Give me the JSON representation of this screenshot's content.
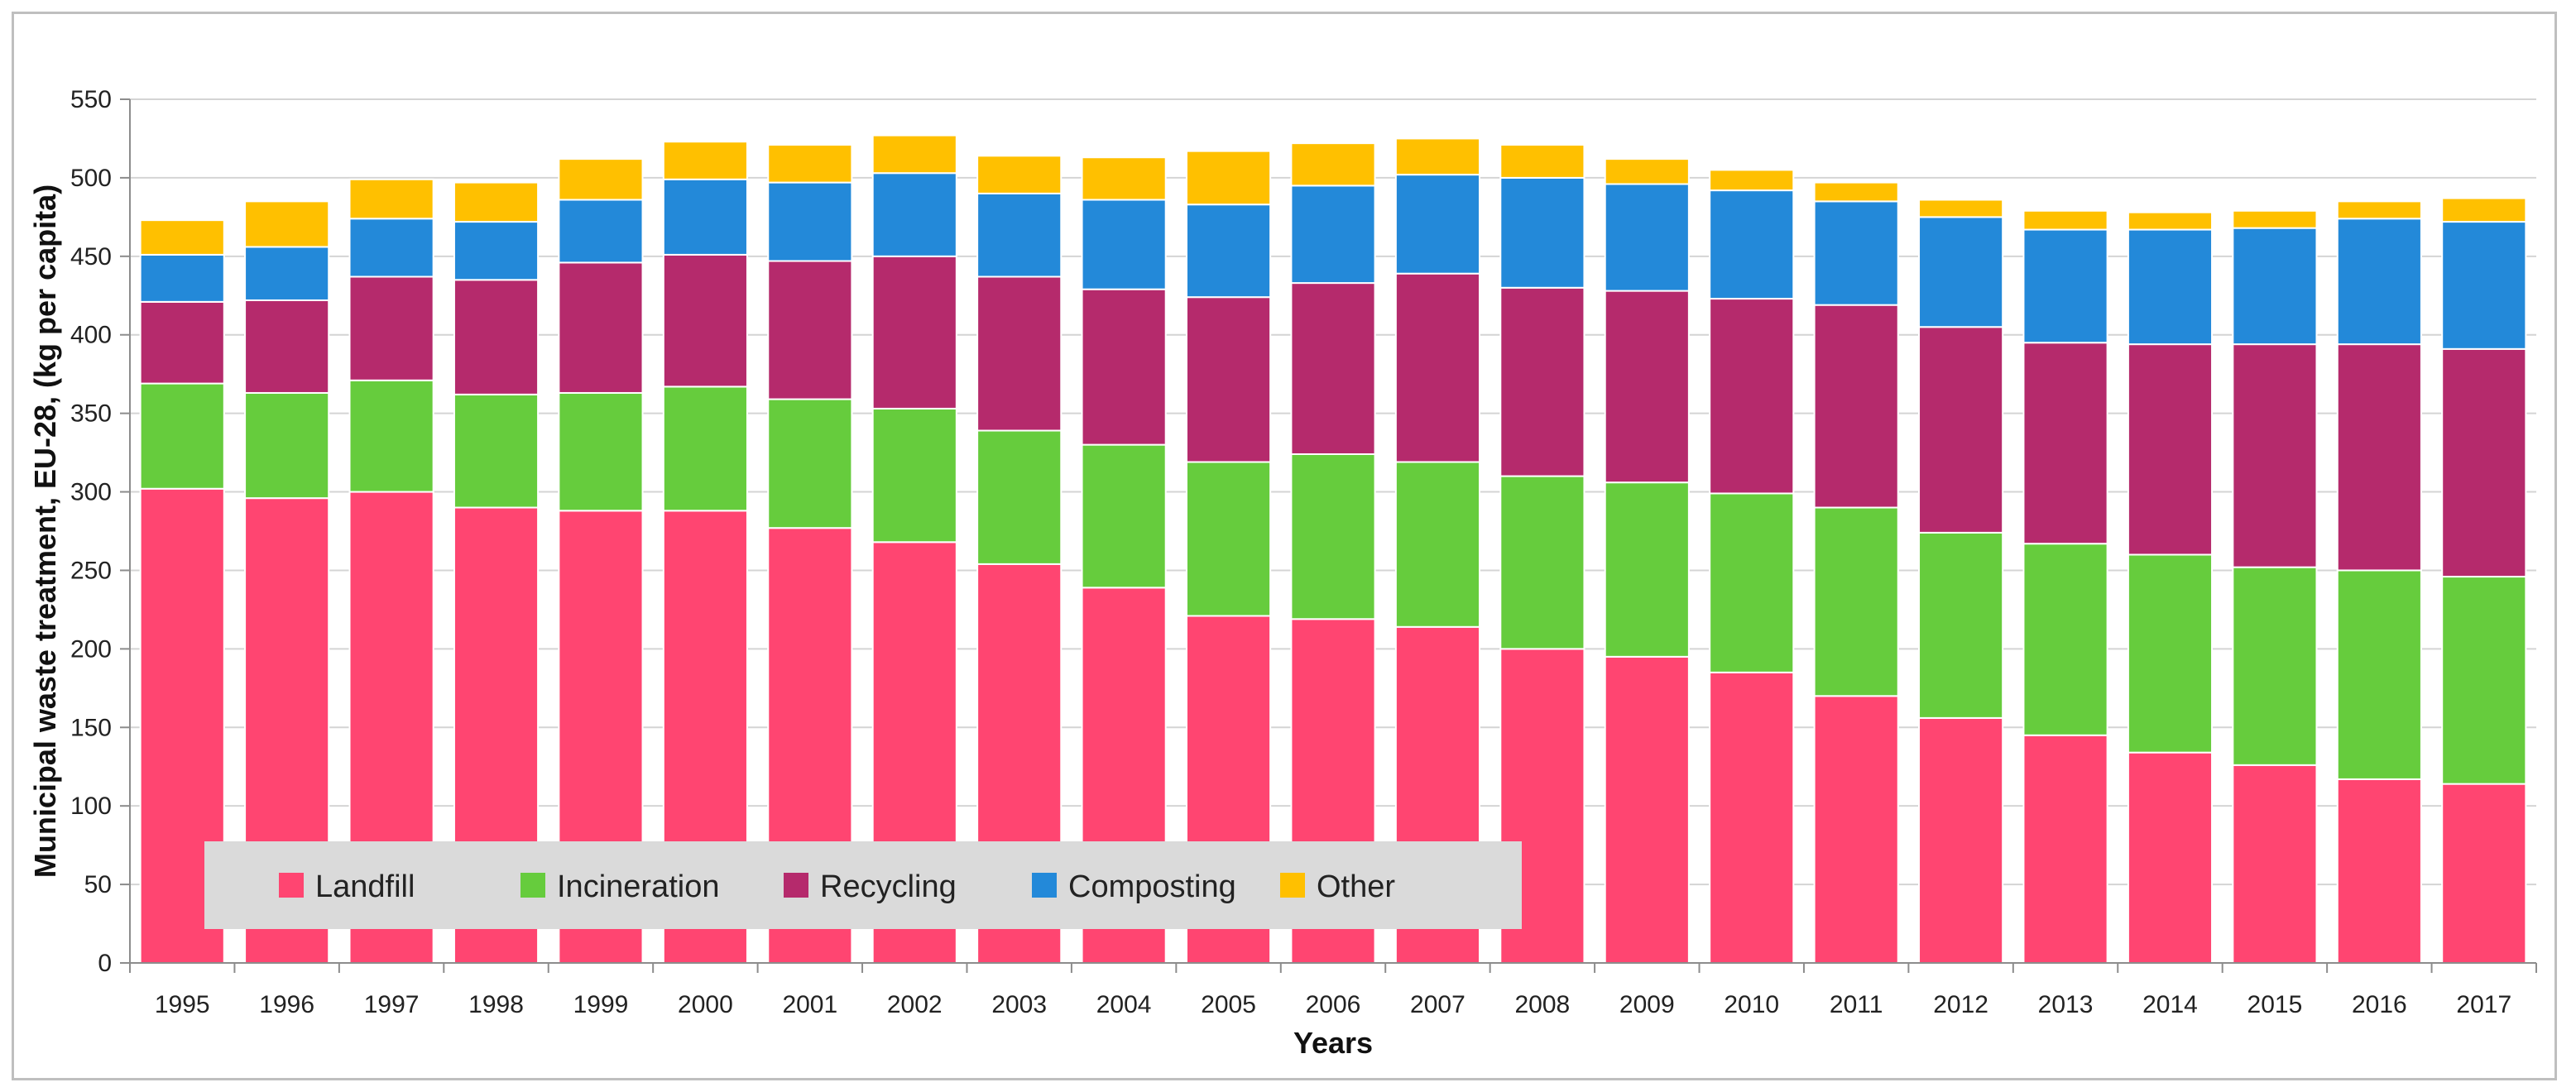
{
  "chart_data": {
    "type": "bar",
    "stacked": true,
    "title": "",
    "xlabel": "Years",
    "ylabel": "Municipal waste treatment, EU-28, (kg per capita)",
    "ylim": [
      0,
      550
    ],
    "yticks": [
      0,
      50,
      100,
      150,
      200,
      250,
      300,
      350,
      400,
      450,
      500,
      550
    ],
    "grid": true,
    "legend_position": "bottom-left inside",
    "categories": [
      "1995",
      "1996",
      "1997",
      "1998",
      "1999",
      "2000",
      "2001",
      "2002",
      "2003",
      "2004",
      "2005",
      "2006",
      "2007",
      "2008",
      "2009",
      "2010",
      "2011",
      "2012",
      "2013",
      "2014",
      "2015",
      "2016",
      "2017"
    ],
    "series": [
      {
        "name": "Landfill",
        "color": "#ff4571",
        "values": [
          302,
          296,
          300,
          290,
          288,
          288,
          277,
          268,
          254,
          239,
          221,
          219,
          214,
          200,
          195,
          185,
          170,
          156,
          145,
          134,
          126,
          117,
          114
        ]
      },
      {
        "name": "Incineration",
        "color": "#66cc3d",
        "values": [
          67,
          67,
          71,
          72,
          75,
          79,
          82,
          85,
          85,
          91,
          98,
          105,
          105,
          110,
          111,
          114,
          120,
          118,
          122,
          126,
          126,
          133,
          132
        ]
      },
      {
        "name": "Recycling",
        "color": "#b52a6c",
        "values": [
          52,
          59,
          66,
          73,
          83,
          84,
          88,
          97,
          98,
          99,
          105,
          109,
          120,
          120,
          122,
          124,
          129,
          131,
          128,
          134,
          142,
          144,
          145
        ]
      },
      {
        "name": "Composting",
        "color": "#2389d9",
        "values": [
          30,
          34,
          37,
          37,
          40,
          48,
          50,
          53,
          53,
          57,
          59,
          62,
          63,
          70,
          68,
          69,
          66,
          70,
          72,
          73,
          74,
          80,
          81
        ]
      },
      {
        "name": "Other",
        "color": "#ffc000",
        "values": [
          22,
          29,
          25,
          25,
          26,
          24,
          24,
          24,
          24,
          27,
          34,
          27,
          23,
          21,
          16,
          13,
          12,
          11,
          12,
          11,
          11,
          11,
          15
        ]
      }
    ]
  }
}
